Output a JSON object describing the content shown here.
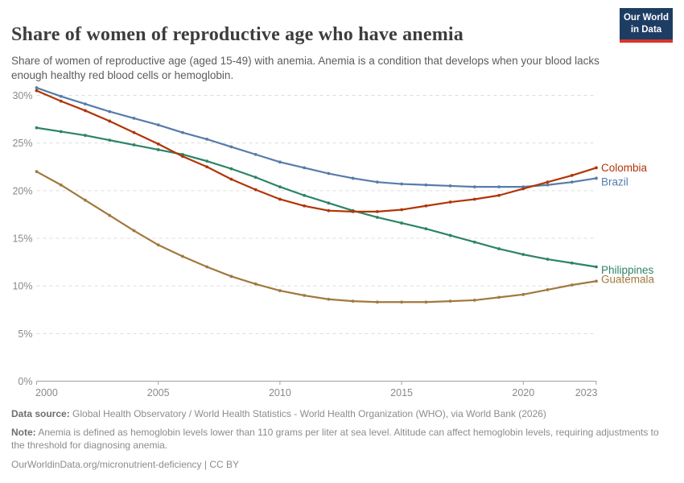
{
  "header": {
    "title": "Share of women of reproductive age who have anemia",
    "subtitle": "Share of women of reproductive age (aged 15-49) with anemia. Anemia is a condition that develops when your blood lacks enough healthy red blood cells or hemoglobin.",
    "logo": {
      "line1": "Our World",
      "line2": "in Data",
      "bg_color": "#1d3d63",
      "accent_color": "#d8352a"
    }
  },
  "chart_data": {
    "type": "line",
    "x": [
      2000,
      2001,
      2002,
      2003,
      2004,
      2005,
      2006,
      2007,
      2008,
      2009,
      2010,
      2011,
      2012,
      2013,
      2014,
      2015,
      2016,
      2017,
      2018,
      2019,
      2020,
      2021,
      2022,
      2023
    ],
    "series": [
      {
        "name": "Colombia",
        "color": "#B13507",
        "values": [
          30.5,
          29.4,
          28.4,
          27.3,
          26.1,
          24.9,
          23.6,
          22.5,
          21.2,
          20.1,
          19.1,
          18.4,
          17.9,
          17.8,
          17.8,
          18.0,
          18.4,
          18.8,
          19.1,
          19.5,
          20.2,
          20.9,
          21.6,
          22.4
        ]
      },
      {
        "name": "Brazil",
        "color": "#577CA9",
        "values": [
          30.8,
          29.9,
          29.1,
          28.3,
          27.6,
          26.9,
          26.1,
          25.4,
          24.6,
          23.8,
          23.0,
          22.4,
          21.8,
          21.3,
          20.9,
          20.7,
          20.6,
          20.5,
          20.4,
          20.4,
          20.4,
          20.6,
          20.9,
          21.3
        ]
      },
      {
        "name": "Philippines",
        "color": "#2C8465",
        "values": [
          26.6,
          26.2,
          25.8,
          25.3,
          24.8,
          24.3,
          23.8,
          23.1,
          22.3,
          21.4,
          20.4,
          19.5,
          18.7,
          17.9,
          17.2,
          16.6,
          16.0,
          15.3,
          14.6,
          13.9,
          13.3,
          12.8,
          12.4,
          12.0
        ]
      },
      {
        "name": "Guatemala",
        "color": "#A1793E",
        "values": [
          22.0,
          20.6,
          19.0,
          17.4,
          15.8,
          14.3,
          13.1,
          12.0,
          11.0,
          10.2,
          9.5,
          9.0,
          8.6,
          8.4,
          8.3,
          8.3,
          8.3,
          8.4,
          8.5,
          8.8,
          9.1,
          9.6,
          10.1,
          10.5
        ]
      }
    ],
    "title": "Share of women of reproductive age who have anemia",
    "xlabel": "",
    "ylabel": "",
    "ylim": [
      0,
      30
    ],
    "yticks": [
      {
        "value": 0,
        "label": "0%"
      },
      {
        "value": 5,
        "label": "5%"
      },
      {
        "value": 10,
        "label": "10%"
      },
      {
        "value": 15,
        "label": "15%"
      },
      {
        "value": 20,
        "label": "20%"
      },
      {
        "value": 25,
        "label": "25%"
      },
      {
        "value": 30,
        "label": "30%"
      }
    ],
    "xticks": [
      {
        "value": 2000,
        "label": "2000"
      },
      {
        "value": 2005,
        "label": "2005"
      },
      {
        "value": 2010,
        "label": "2010"
      },
      {
        "value": 2015,
        "label": "2015"
      },
      {
        "value": 2020,
        "label": "2020"
      },
      {
        "value": 2023,
        "label": "2023"
      }
    ],
    "grid": "horizontal-dashed",
    "legend_position": "right-end-labels",
    "grid_color": "#dcdcdc",
    "axis_color": "#a0a0a0",
    "tick_label_color": "#8a8a8a"
  },
  "footer": {
    "data_source_label": "Data source:",
    "data_source": "Global Health Observatory / World Health Statistics - World Health Organization (WHO), via World Bank (2026)",
    "note_label": "Note:",
    "note": "Anemia is defined as hemoglobin levels lower than 110 grams per liter at sea level. Altitude can affect hemoglobin levels, requiring adjustments to the threshold for diagnosing anemia.",
    "link": "OurWorldinData.org/micronutrient-deficiency | CC BY"
  }
}
